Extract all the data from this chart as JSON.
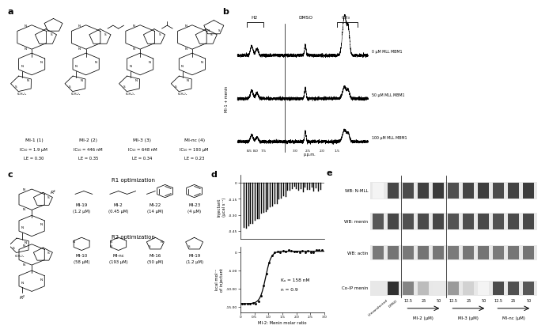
{
  "background_color": "#ffffff",
  "panel_a_compounds": [
    {
      "name": "MI-1 (1)",
      "ic50": "IC₅₀ = 1.9 μM",
      "le": "LE = 0.30"
    },
    {
      "name": "MI-2 (2)",
      "ic50": "IC₅₀ = 446 nM",
      "le": "LE = 0.35"
    },
    {
      "name": "MI-3 (3)",
      "ic50": "IC₅₀ = 648 nM",
      "le": "LE = 0.34"
    },
    {
      "name": "MI-nc (4)",
      "ic50": "IC₅₀ = 193 μM",
      "le": "LE = 0.23"
    }
  ],
  "nmr_labels_right": [
    "0 μM MLL MBM1",
    "50 μM MLL MBM1",
    "100 μM MLL MBM1"
  ],
  "itc_kd": "Kₐ = 158 nM",
  "itc_n": "n = 0.9",
  "wb_rows": [
    "WB: N-MLL",
    "WB: menin",
    "WB: actin",
    "Co-IP menin"
  ],
  "group_labels": [
    "MI-2 (μM)",
    "MI-3 (μM)",
    "MI-nc (μM)"
  ],
  "sub_labels": [
    "12.5",
    "25",
    "50"
  ],
  "lane_labels_first": [
    "Untransfected",
    "DMSO"
  ],
  "nmll_int": [
    0.05,
    0.82,
    0.8,
    0.85,
    0.88,
    0.78,
    0.83,
    0.86,
    0.8,
    0.84,
    0.87
  ],
  "menin_int": [
    0.75,
    0.82,
    0.78,
    0.8,
    0.82,
    0.76,
    0.79,
    0.81,
    0.77,
    0.8,
    0.82
  ],
  "actin_int": [
    0.6,
    0.62,
    0.6,
    0.62,
    0.61,
    0.59,
    0.61,
    0.62,
    0.59,
    0.61,
    0.62
  ],
  "coip_int": [
    0.0,
    0.92,
    0.55,
    0.3,
    0.1,
    0.45,
    0.2,
    0.05,
    0.8,
    0.78,
    0.75
  ],
  "r1_names": [
    "MI-19",
    "MI-2",
    "MI-22",
    "MI-23"
  ],
  "r1_vals": [
    "(1.2 μM)",
    "(0.45 μM)",
    "(14 μM)",
    "(4 μM)"
  ],
  "r2_names": [
    "MI-10",
    "MI-nc",
    "MI-16",
    "MI-19"
  ],
  "r2_vals": [
    "(58 μM)",
    "(193 μM)",
    "(50 μM)",
    "(1.2 μM)"
  ]
}
